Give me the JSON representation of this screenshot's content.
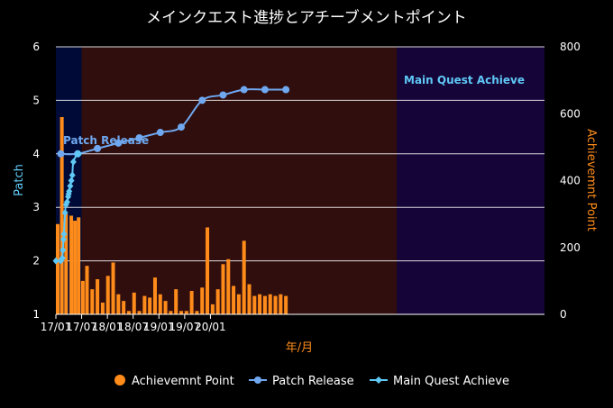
{
  "chart_data": {
    "type": "bar+line",
    "title": "メインクエスト進捗とアチーブメントポイント",
    "xlabel": "年/月",
    "ylabel_left": "Patch",
    "ylabel_right": "Achievemnt Point",
    "ylim_left": [
      1,
      6
    ],
    "ylim_right": [
      0,
      800
    ],
    "x_ticks": [
      "17/01",
      "17/07",
      "18/01",
      "18/07",
      "19/01",
      "19/07",
      "20/01"
    ],
    "y_ticks_left": [
      "1",
      "2",
      "3",
      "4",
      "5",
      "6"
    ],
    "y_ticks_right": [
      "0",
      "200",
      "400",
      "600",
      "800"
    ],
    "bands": [
      {
        "x0": 16.93,
        "x1": 19.39,
        "color": "#000a36"
      },
      {
        "x0": 19.39,
        "x1": 49.5,
        "color": "#300e0e"
      },
      {
        "x0": 49.5,
        "x1": 63.6,
        "color": "#150438"
      }
    ],
    "series": [
      {
        "name": "Achievemnt Point",
        "type": "bar",
        "axis": "right",
        "color": "#ff8c1a",
        "x": [
          17.1,
          17.5,
          17.9,
          18.4,
          18.75,
          19.1,
          19.5,
          19.9,
          20.4,
          20.9,
          21.4,
          21.9,
          22.4,
          22.9,
          23.4,
          23.9,
          24.4,
          24.9,
          25.4,
          25.9,
          26.4,
          26.9,
          27.4,
          27.9,
          28.4,
          28.9,
          29.4,
          29.9,
          30.4,
          30.9,
          31.4,
          31.9,
          32.4,
          32.9,
          33.4,
          33.9,
          34.4,
          34.9,
          35.4,
          35.9,
          36.4,
          36.9,
          37.4,
          37.9,
          38.4,
          38.9
        ],
        "values": [
          270,
          590,
          300,
          295,
          280,
          290,
          100,
          145,
          75,
          105,
          35,
          115,
          155,
          60,
          40,
          10,
          65,
          10,
          55,
          50,
          110,
          60,
          40,
          10,
          75,
          10,
          10,
          70,
          10,
          80,
          260,
          30,
          75,
          150,
          165,
          85,
          60,
          220,
          90,
          55,
          60,
          55,
          60,
          55,
          60,
          55
        ]
      },
      {
        "name": "Patch Release",
        "type": "line",
        "axis": "left",
        "color": "#6fa8f0",
        "x": [
          17.4,
          19.0,
          20.9,
          22.9,
          24.9,
          26.9,
          28.9,
          30.9,
          32.9,
          34.9,
          36.9,
          38.9
        ],
        "values": [
          4.0,
          4.0,
          4.1,
          4.2,
          4.3,
          4.4,
          4.5,
          5.0,
          5.1,
          5.2,
          5.2,
          5.2
        ]
      },
      {
        "name": "Main Quest Achieve",
        "type": "line",
        "axis": "left",
        "color": "#5fc8f5",
        "x": [
          16.93,
          17.4,
          17.55,
          17.6,
          17.65,
          17.7,
          17.8,
          17.9,
          18.0,
          18.1,
          18.15,
          18.2,
          18.3,
          18.4,
          18.5,
          18.6,
          19.0,
          19.15
        ],
        "values": [
          2.0,
          2.0,
          2.05,
          2.2,
          2.4,
          2.5,
          2.9,
          3.05,
          3.1,
          3.2,
          3.25,
          3.3,
          3.4,
          3.5,
          3.6,
          3.85,
          4.0,
          4.0
        ]
      }
    ],
    "annotations": [
      "Patch Release",
      "Main Quest Achieve"
    ],
    "legend": [
      "Achievemnt Point",
      "Patch Release",
      "Main Quest Achieve"
    ]
  }
}
